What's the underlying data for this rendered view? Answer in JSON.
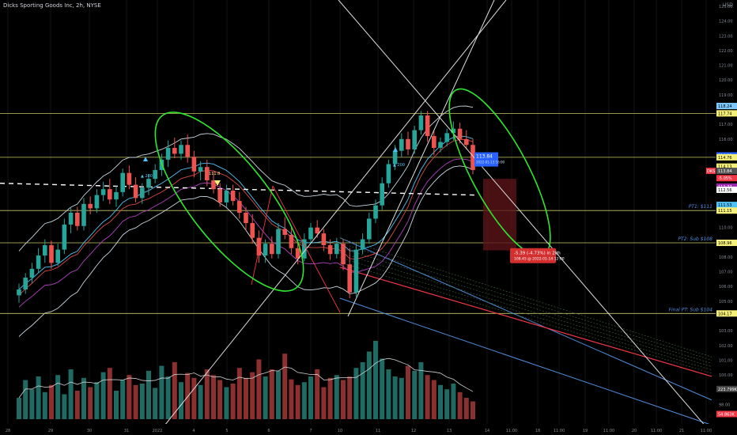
{
  "header": {
    "title": "Dicks Sporting Goods Inc, 2h, NYSE",
    "currency": "USD"
  },
  "price_axis": {
    "ticks": [
      {
        "v": 125.0,
        "t": "125.00"
      },
      {
        "v": 124.0,
        "t": "124.00"
      },
      {
        "v": 123.0,
        "t": "123.00"
      },
      {
        "v": 122.0,
        "t": "122.00"
      },
      {
        "v": 121.0,
        "t": "121.00"
      },
      {
        "v": 120.0,
        "t": "120.00"
      },
      {
        "v": 119.0,
        "t": "119.00"
      },
      {
        "v": 117.0,
        "t": "117.00"
      },
      {
        "v": 116.0,
        "t": "116.00"
      },
      {
        "v": 110.0,
        "t": "110.00"
      },
      {
        "v": 109.0,
        "t": "109.00"
      },
      {
        "v": 108.0,
        "t": "108.00"
      },
      {
        "v": 107.0,
        "t": "107.00"
      },
      {
        "v": 106.0,
        "t": "106.00"
      },
      {
        "v": 105.0,
        "t": "105.00"
      },
      {
        "v": 103.0,
        "t": "103.00"
      },
      {
        "v": 102.0,
        "t": "102.00"
      },
      {
        "v": 101.0,
        "t": "101.00"
      },
      {
        "v": 100.0,
        "t": "100.00"
      },
      {
        "v": 99.0,
        "t": "99.00"
      },
      {
        "v": 98.0,
        "t": "98.00"
      }
    ],
    "badges": [
      {
        "v": 118.24,
        "t": "118.24",
        "bg": "#7ec8ff",
        "fg": "#000"
      },
      {
        "v": 117.74,
        "t": "117.74",
        "bg": "#f5f07a",
        "fg": "#000"
      },
      {
        "v": 114.89,
        "t": "114.89",
        "bg": "#2962ff",
        "fg": "#fff"
      },
      {
        "v": 114.76,
        "t": "114.76",
        "bg": "#f5f07a",
        "fg": "#000"
      },
      {
        "v": 114.13,
        "t": "114.13",
        "bg": "#f5f07a",
        "fg": "#000"
      },
      {
        "v": 113.84,
        "t": "113.84",
        "bg": "#555555",
        "fg": "#fff"
      },
      {
        "v": 113.35,
        "t": "-5.05%",
        "bg": "#f23645",
        "fg": "#fff"
      },
      {
        "v": 112.77,
        "t": "112.77",
        "bg": "#9c27b0",
        "fg": "#fff"
      },
      {
        "v": 112.56,
        "t": "112.56",
        "bg": "#ffffff",
        "fg": "#000"
      },
      {
        "v": 111.53,
        "t": "111.53",
        "bg": "#4fc3f7",
        "fg": "#000"
      },
      {
        "v": 111.15,
        "t": "111.15",
        "bg": "#f5f07a",
        "fg": "#000"
      },
      {
        "v": 108.96,
        "t": "108.96",
        "bg": "#f5f07a",
        "fg": "#000"
      },
      {
        "v": 104.17,
        "t": "104.17",
        "bg": "#f5f07a",
        "fg": "#000"
      },
      {
        "v": 99.05,
        "t": "223.799K",
        "bg": "#444444",
        "fg": "#fff"
      },
      {
        "v": 97.35,
        "t": "54.863K",
        "bg": "#f23645",
        "fg": "#fff"
      }
    ],
    "dks_tag": "DKS"
  },
  "time_axis": [
    {
      "t": "28",
      "x": 10
    },
    {
      "t": "29",
      "x": 64
    },
    {
      "t": "30",
      "x": 113
    },
    {
      "t": "31",
      "x": 160
    },
    {
      "t": "2022",
      "x": 199
    },
    {
      "t": "4",
      "x": 245
    },
    {
      "t": "5",
      "x": 287
    },
    {
      "t": "6",
      "x": 340
    },
    {
      "t": "7",
      "x": 393
    },
    {
      "t": "10",
      "x": 430
    },
    {
      "t": "11",
      "x": 478
    },
    {
      "t": "12",
      "x": 523
    },
    {
      "t": "13",
      "x": 568
    },
    {
      "t": "14",
      "x": 616
    },
    {
      "t": "11:00",
      "x": 647
    },
    {
      "t": "18",
      "x": 680
    },
    {
      "t": "11:00",
      "x": 707
    },
    {
      "t": "19",
      "x": 740
    },
    {
      "t": "11:00",
      "x": 770
    },
    {
      "t": "20",
      "x": 802
    },
    {
      "t": "11:00",
      "x": 830
    },
    {
      "t": "21",
      "x": 862
    },
    {
      "t": "11:00",
      "x": 893
    }
  ],
  "levels": [
    {
      "v": 117.74,
      "color": "#c8c86a",
      "label": ""
    },
    {
      "v": 114.76,
      "color": "#c8c86a",
      "label": ""
    },
    {
      "v": 111.15,
      "color": "#c8c86a",
      "label": "PT1: $111"
    },
    {
      "v": 108.96,
      "color": "#c8c86a",
      "label": "PT2: Sub $108"
    },
    {
      "v": 104.17,
      "color": "#c8c86a",
      "label": "Final PT: Sub $104"
    }
  ],
  "annotations": {
    "measure_line1": "-5.39 (-4.73%) in 20h",
    "measure_line2": "108.45 @ 2022-01-14 12:00",
    "price_box_value": "113.84",
    "price_box_sub": "2022-01-13 16:00",
    "marker_left": "▲ 200",
    "marker_right": "▲ 200",
    "marker_mid": "111.8"
  },
  "candles": [
    [
      105.4,
      106.2,
      104.9,
      105.8
    ],
    [
      105.8,
      106.9,
      105.5,
      106.6
    ],
    [
      106.6,
      107.6,
      106.2,
      107.2
    ],
    [
      107.2,
      108.6,
      106.9,
      108.1
    ],
    [
      108.1,
      109.2,
      107.6,
      108.8
    ],
    [
      108.8,
      109.1,
      107.2,
      107.6
    ],
    [
      107.6,
      108.9,
      107.4,
      108.5
    ],
    [
      108.5,
      110.6,
      108.2,
      110.2
    ],
    [
      110.2,
      111.4,
      109.6,
      111.0
    ],
    [
      111.0,
      111.4,
      109.8,
      110.1
    ],
    [
      110.1,
      112.0,
      109.8,
      111.6
    ],
    [
      111.6,
      112.1,
      110.9,
      111.3
    ],
    [
      111.3,
      112.6,
      111.0,
      112.2
    ],
    [
      112.2,
      113.1,
      111.8,
      112.6
    ],
    [
      112.6,
      113.3,
      111.6,
      111.9
    ],
    [
      111.9,
      112.8,
      111.4,
      112.4
    ],
    [
      112.4,
      114.0,
      112.1,
      113.7
    ],
    [
      113.7,
      114.2,
      112.6,
      112.9
    ],
    [
      112.9,
      113.4,
      111.7,
      112.0
    ],
    [
      112.0,
      113.0,
      111.6,
      112.7
    ],
    [
      112.7,
      113.6,
      112.2,
      113.3
    ],
    [
      113.3,
      114.3,
      113.0,
      113.9
    ],
    [
      113.9,
      115.0,
      113.5,
      114.6
    ],
    [
      114.6,
      115.9,
      114.1,
      115.4
    ],
    [
      115.4,
      116.1,
      114.7,
      115.0
    ],
    [
      115.0,
      115.9,
      114.6,
      115.6
    ],
    [
      115.6,
      116.3,
      114.4,
      114.8
    ],
    [
      114.8,
      115.2,
      113.4,
      113.8
    ],
    [
      113.8,
      114.5,
      113.2,
      114.1
    ],
    [
      114.1,
      114.6,
      112.8,
      113.2
    ],
    [
      113.2,
      113.8,
      112.3,
      112.6
    ],
    [
      112.6,
      113.0,
      111.4,
      111.7
    ],
    [
      111.7,
      112.9,
      111.4,
      112.5
    ],
    [
      112.5,
      112.9,
      111.5,
      111.8
    ],
    [
      111.8,
      112.4,
      110.6,
      111.0
    ],
    [
      111.0,
      111.4,
      109.8,
      110.3
    ],
    [
      110.3,
      110.9,
      108.9,
      109.3
    ],
    [
      109.3,
      109.8,
      107.6,
      108.1
    ],
    [
      108.1,
      109.2,
      107.6,
      108.9
    ],
    [
      108.9,
      109.4,
      107.9,
      108.2
    ],
    [
      108.2,
      110.3,
      107.9,
      109.9
    ],
    [
      109.9,
      110.7,
      109.2,
      109.5
    ],
    [
      109.5,
      110.1,
      108.2,
      108.6
    ],
    [
      108.6,
      109.1,
      107.5,
      107.9
    ],
    [
      107.9,
      109.6,
      107.7,
      109.2
    ],
    [
      109.2,
      110.3,
      108.9,
      110.0
    ],
    [
      110.0,
      110.5,
      109.3,
      109.6
    ],
    [
      109.6,
      109.9,
      108.4,
      108.8
    ],
    [
      108.8,
      109.2,
      107.8,
      108.2
    ],
    [
      108.2,
      109.3,
      107.9,
      108.9
    ],
    [
      108.9,
      109.2,
      107.1,
      107.5
    ],
    [
      107.5,
      108.6,
      105.2,
      105.6
    ],
    [
      105.6,
      108.9,
      105.3,
      108.5
    ],
    [
      108.5,
      109.6,
      108.2,
      109.2
    ],
    [
      109.2,
      111.0,
      108.9,
      110.6
    ],
    [
      110.6,
      111.9,
      110.3,
      111.5
    ],
    [
      111.5,
      113.4,
      111.2,
      113.0
    ],
    [
      113.0,
      114.6,
      112.7,
      114.3
    ],
    [
      114.3,
      115.6,
      113.9,
      115.2
    ],
    [
      115.2,
      116.4,
      114.8,
      116.0
    ],
    [
      116.0,
      116.5,
      114.9,
      115.3
    ],
    [
      115.3,
      116.9,
      115.0,
      116.6
    ],
    [
      116.6,
      117.9,
      116.3,
      117.6
    ],
    [
      117.6,
      117.9,
      115.8,
      116.2
    ],
    [
      116.2,
      116.6,
      114.9,
      115.4
    ],
    [
      115.4,
      116.1,
      115.1,
      115.8
    ],
    [
      115.8,
      116.7,
      115.5,
      116.4
    ],
    [
      116.4,
      117.2,
      115.9,
      116.7
    ],
    [
      116.7,
      117.1,
      115.7,
      116.0
    ],
    [
      116.0,
      116.6,
      115.3,
      115.6
    ],
    [
      115.6,
      116.0,
      113.6,
      113.9
    ]
  ],
  "volumes": [
    30,
    55,
    42,
    60,
    38,
    48,
    62,
    35,
    70,
    40,
    58,
    45,
    52,
    66,
    72,
    40,
    55,
    62,
    48,
    50,
    68,
    44,
    75,
    60,
    80,
    52,
    65,
    58,
    48,
    70,
    62,
    55,
    45,
    50,
    72,
    58,
    66,
    84,
    60,
    70,
    68,
    92,
    56,
    48,
    52,
    60,
    70,
    45,
    58,
    62,
    55,
    60,
    72,
    80,
    95,
    110,
    85,
    70,
    60,
    58,
    75,
    68,
    80,
    62,
    55,
    48,
    42,
    50,
    38,
    30,
    25
  ]
}
